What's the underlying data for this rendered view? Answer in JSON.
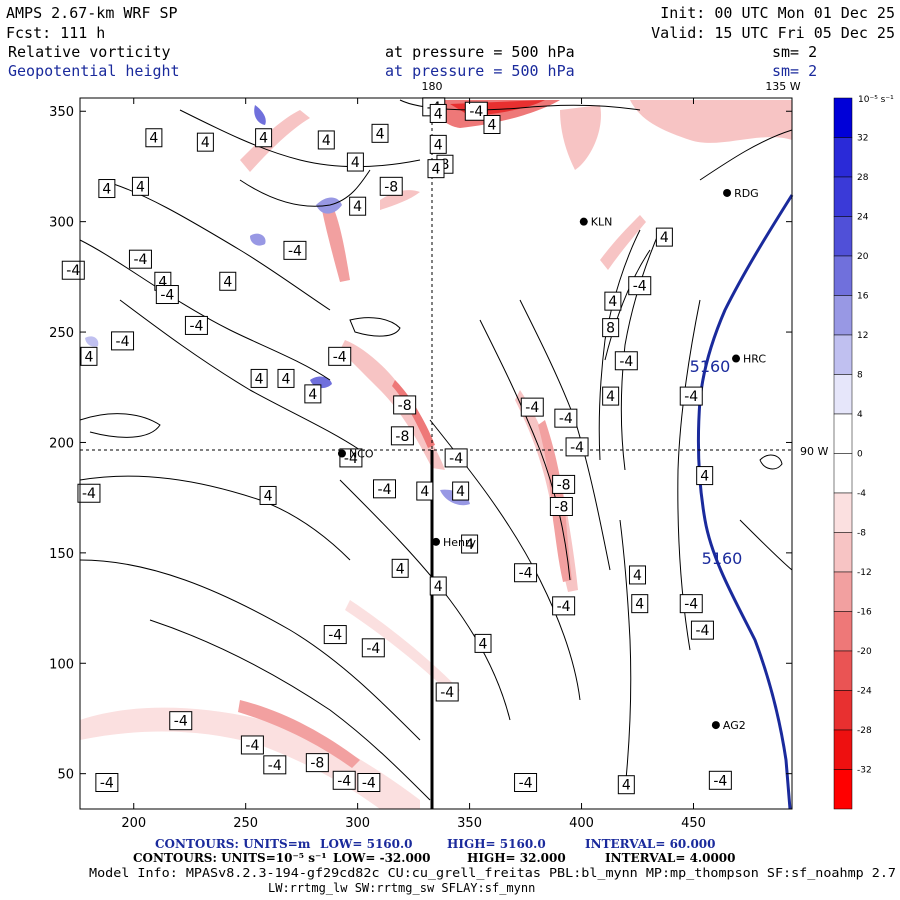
{
  "header": {
    "title": "AMPS 2.67-km WRF SP",
    "fcst": "Fcst:  111 h",
    "init": "Init: 00 UTC Mon 01 Dec 25",
    "valid": "Valid: 15 UTC Fri 05 Dec 25",
    "field1": "Relative vorticity",
    "field2": "Geopotential height",
    "pressure1": "at pressure =  500 hPa",
    "pressure2": "at pressure =  500 hPa",
    "sm1": "sm= 2",
    "sm2": "sm= 2"
  },
  "map_labels": {
    "lon180": "180",
    "lon135": "135 W",
    "lon90": "90 W"
  },
  "stations": [
    {
      "name": "KLN",
      "x": 401,
      "y": 300
    },
    {
      "name": "RDG",
      "x": 465,
      "y": 313
    },
    {
      "name": "HRC",
      "x": 469,
      "y": 238
    },
    {
      "name": "NCO",
      "x": 293,
      "y": 195
    },
    {
      "name": "Henry",
      "x": 335,
      "y": 155
    },
    {
      "name": "AG2",
      "x": 460,
      "y": 72
    }
  ],
  "colorbar": {
    "unit": "10⁻⁵ s⁻¹",
    "labels": [
      "32",
      "28",
      "24",
      "20",
      "16",
      "12",
      "8",
      "4",
      "0",
      "-4",
      "-8",
      "-12",
      "-16",
      "-20",
      "-24",
      "-28",
      "-32"
    ],
    "colors": [
      "#0000d8",
      "#2a2ad8",
      "#3a3ad8",
      "#5050d8",
      "#7070dc",
      "#9898e4",
      "#c0c0f0",
      "#e6e6fa",
      "#ffffff",
      "#ffffff",
      "#fbe0e0",
      "#f7c4c4",
      "#f2a0a0",
      "#ee7878",
      "#ea5454",
      "#e83030",
      "#ee1010",
      "#ff0000"
    ]
  },
  "chart_data": {
    "type": "contour",
    "title": "Relative vorticity / Geopotential height at 500 hPa",
    "x_ticks": [
      200,
      250,
      300,
      350,
      400,
      450
    ],
    "y_ticks": [
      50,
      100,
      150,
      200,
      250,
      300,
      350
    ],
    "xlim": [
      176,
      494
    ],
    "ylim": [
      34,
      356
    ],
    "geopotential_contour_values": [
      5160,
      5160
    ],
    "contour_labels": [
      {
        "t": "4",
        "x": 209,
        "y": 338
      },
      {
        "t": "4",
        "x": 232,
        "y": 336
      },
      {
        "t": "4",
        "x": 258,
        "y": 338
      },
      {
        "t": "4",
        "x": 286,
        "y": 337
      },
      {
        "t": "4",
        "x": 310,
        "y": 340
      },
      {
        "t": "4",
        "x": 336,
        "y": 335
      },
      {
        "t": "4",
        "x": 203,
        "y": 316
      },
      {
        "t": "4",
        "x": 188,
        "y": 315
      },
      {
        "t": "4",
        "x": 213,
        "y": 273
      },
      {
        "t": "4",
        "x": 242,
        "y": 273
      },
      {
        "t": "4",
        "x": 300,
        "y": 307
      },
      {
        "t": "8",
        "x": 339,
        "y": 326
      },
      {
        "t": "-8",
        "x": 315,
        "y": 316
      },
      {
        "t": "4",
        "x": 335,
        "y": 324
      },
      {
        "t": "-4",
        "x": 203,
        "y": 283
      },
      {
        "t": "-4",
        "x": 173,
        "y": 278
      },
      {
        "t": "-4",
        "x": 215,
        "y": 267
      },
      {
        "t": "-4",
        "x": 228,
        "y": 253
      },
      {
        "t": "-4",
        "x": 195,
        "y": 246
      },
      {
        "t": "4",
        "x": 180,
        "y": 239
      },
      {
        "t": "-4",
        "x": 272,
        "y": 287
      },
      {
        "t": "4",
        "x": 299,
        "y": 327
      },
      {
        "t": "-4",
        "x": 334,
        "y": 352
      },
      {
        "t": "-4",
        "x": 353,
        "y": 350
      },
      {
        "t": "4",
        "x": 336,
        "y": 349
      },
      {
        "t": "4",
        "x": 360,
        "y": 344
      },
      {
        "t": "-4",
        "x": 292,
        "y": 239
      },
      {
        "t": "4",
        "x": 256,
        "y": 229
      },
      {
        "t": "4",
        "x": 268,
        "y": 229
      },
      {
        "t": "4",
        "x": 280,
        "y": 222
      },
      {
        "t": "-8",
        "x": 321,
        "y": 217
      },
      {
        "t": "-8",
        "x": 320,
        "y": 203
      },
      {
        "t": "-4",
        "x": 297,
        "y": 193
      },
      {
        "t": "-4",
        "x": 344,
        "y": 193
      },
      {
        "t": "-4",
        "x": 312,
        "y": 179
      },
      {
        "t": "4",
        "x": 330,
        "y": 178
      },
      {
        "t": "4",
        "x": 346,
        "y": 178
      },
      {
        "t": "4",
        "x": 350,
        "y": 154
      },
      {
        "t": "4",
        "x": 319,
        "y": 143
      },
      {
        "t": "4",
        "x": 336,
        "y": 135
      },
      {
        "t": "-4",
        "x": 290,
        "y": 113
      },
      {
        "t": "-4",
        "x": 307,
        "y": 107
      },
      {
        "t": "4",
        "x": 356,
        "y": 109
      },
      {
        "t": "-4",
        "x": 340,
        "y": 87
      },
      {
        "t": "-4",
        "x": 221,
        "y": 74
      },
      {
        "t": "-4",
        "x": 253,
        "y": 63
      },
      {
        "t": "-4",
        "x": 263,
        "y": 54
      },
      {
        "t": "-8",
        "x": 282,
        "y": 55
      },
      {
        "t": "-4",
        "x": 305,
        "y": 46
      },
      {
        "t": "-4",
        "x": 294,
        "y": 47
      },
      {
        "t": "-4",
        "x": 188,
        "y": 46
      },
      {
        "t": "-4",
        "x": 375,
        "y": 46
      },
      {
        "t": "4",
        "x": 420,
        "y": 45
      },
      {
        "t": "-4",
        "x": 462,
        "y": 47
      },
      {
        "t": "-4",
        "x": 180,
        "y": 177
      },
      {
        "t": "4",
        "x": 260,
        "y": 176
      },
      {
        "t": "-4",
        "x": 393,
        "y": 211
      },
      {
        "t": "-4",
        "x": 378,
        "y": 216
      },
      {
        "t": "-4",
        "x": 398,
        "y": 198
      },
      {
        "t": "-8",
        "x": 392,
        "y": 181
      },
      {
        "t": "-8",
        "x": 391,
        "y": 171
      },
      {
        "t": "-4",
        "x": 375,
        "y": 141
      },
      {
        "t": "-4",
        "x": 392,
        "y": 126
      },
      {
        "t": "4",
        "x": 425,
        "y": 140
      },
      {
        "t": "4",
        "x": 426,
        "y": 127
      },
      {
        "t": "-4",
        "x": 449,
        "y": 127
      },
      {
        "t": "-4",
        "x": 454,
        "y": 115
      },
      {
        "t": "4",
        "x": 455,
        "y": 185
      },
      {
        "t": "4",
        "x": 413,
        "y": 221
      },
      {
        "t": "-4",
        "x": 420,
        "y": 237
      },
      {
        "t": "8",
        "x": 413,
        "y": 252
      },
      {
        "t": "4",
        "x": 414,
        "y": 264
      },
      {
        "t": "-4",
        "x": 426,
        "y": 271
      },
      {
        "t": "4",
        "x": 437,
        "y": 293
      },
      {
        "t": "-4",
        "x": 449,
        "y": 221
      }
    ]
  },
  "footer": {
    "contours1_label": "CONTOURS:  UNITS=m",
    "contours1_low": "LOW=  5160.0",
    "contours1_high": "HIGH=  5160.0",
    "contours1_interval": "INTERVAL=   60.000",
    "contours2_label": "CONTOURS:  UNITS=10⁻⁵ s⁻¹",
    "contours2_low": "LOW= -32.000",
    "contours2_high": "HIGH=  32.000",
    "contours2_interval": "INTERVAL=   4.0000",
    "model_info": "Model Info: MPASv8.2.3-194-gf29cd82c CU:cu_grell_freitas PBL:bl_mynn MP:mp_thompson SF:sf_noahmp 2.7",
    "model_info2": "LW:rrtmg_lw SW:rrtmg_sw SFLAY:sf_mynn"
  }
}
